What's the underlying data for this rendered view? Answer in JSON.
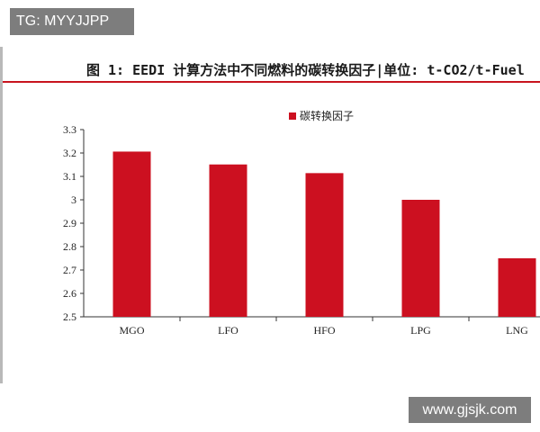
{
  "watermarks": {
    "top": "TG: MYYJJPP",
    "bottom": "www.gjsjk.com"
  },
  "figure_title": "图 1: EEDI 计算方法中不同燃料的碳转换因子|单位: t-CO2/t-Fuel",
  "colors": {
    "bar": "#cc1020",
    "title_rule": "#c8141e"
  },
  "chart_data": {
    "type": "bar",
    "categories": [
      "MGO",
      "LFO",
      "HFO",
      "LPG",
      "LNG"
    ],
    "series": [
      {
        "name": "碳转换因子",
        "values": [
          3.206,
          3.151,
          3.114,
          3.0,
          2.75
        ]
      }
    ],
    "ylim": [
      2.5,
      3.3
    ],
    "yticks": [
      "2.5",
      "2.6",
      "2.7",
      "2.8",
      "2.9",
      "3",
      "3.1",
      "3.2",
      "3.3"
    ],
    "xlabel": "",
    "ylabel": "",
    "legend_position": "top-center",
    "grid": false
  }
}
